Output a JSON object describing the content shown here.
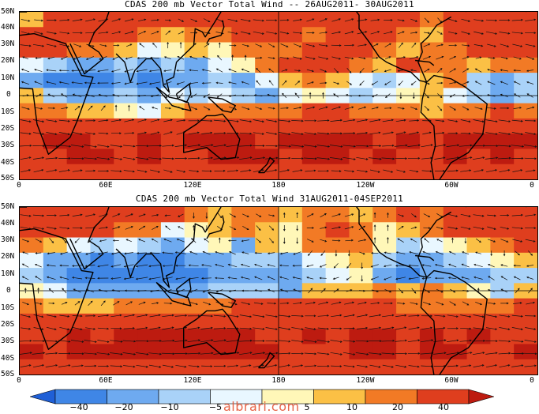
{
  "panels": [
    {
      "title": "CDAS 200 mb Vector Total Wind -- 26AUG2011- 30AUG2011",
      "wind": [
        [
          5,
          35,
          30,
          30,
          30,
          35,
          30,
          30,
          25,
          20,
          25,
          30,
          35,
          30,
          25,
          30,
          20,
          15,
          20,
          30,
          30,
          35
        ],
        [
          20,
          25,
          25,
          25,
          20,
          15,
          5,
          10,
          15,
          25,
          30,
          20,
          15,
          20,
          25,
          20,
          10,
          5,
          20,
          25,
          30,
          30
        ],
        [
          30,
          25,
          15,
          10,
          5,
          -5,
          0,
          5,
          0,
          10,
          10,
          15,
          20,
          25,
          20,
          10,
          5,
          10,
          15,
          20,
          20,
          25
        ],
        [
          -5,
          -10,
          -15,
          -15,
          -10,
          -20,
          -10,
          -15,
          -5,
          0,
          10,
          20,
          25,
          20,
          10,
          5,
          20,
          15,
          10,
          5,
          10,
          15
        ],
        [
          -15,
          -25,
          -30,
          -30,
          -20,
          -30,
          -15,
          -20,
          -10,
          -15,
          -5,
          5,
          10,
          5,
          -5,
          -10,
          -5,
          5,
          10,
          -10,
          -15,
          -10
        ],
        [
          5,
          -10,
          -20,
          -20,
          -10,
          -15,
          -5,
          -10,
          -5,
          -10,
          -15,
          -5,
          0,
          -5,
          -10,
          -5,
          0,
          5,
          -5,
          -10,
          -15,
          -10
        ],
        [
          15,
          10,
          5,
          5,
          0,
          -5,
          5,
          10,
          10,
          15,
          10,
          15,
          20,
          20,
          15,
          10,
          10,
          5,
          10,
          15,
          20,
          15
        ],
        [
          30,
          30,
          25,
          25,
          25,
          20,
          20,
          30,
          35,
          35,
          30,
          35,
          35,
          35,
          30,
          30,
          25,
          20,
          25,
          30,
          35,
          30
        ],
        [
          35,
          40,
          40,
          35,
          35,
          40,
          35,
          40,
          40,
          40,
          35,
          40,
          45,
          40,
          40,
          35,
          40,
          35,
          40,
          45,
          40,
          40
        ],
        [
          30,
          35,
          40,
          40,
          35,
          40,
          35,
          35,
          40,
          40,
          40,
          35,
          40,
          40,
          35,
          40,
          35,
          30,
          40,
          35,
          40,
          35
        ],
        [
          25,
          30,
          25,
          30,
          30,
          25,
          20,
          25,
          30,
          30,
          30,
          25,
          30,
          25,
          30,
          25,
          20,
          25,
          30,
          25,
          30,
          25
        ]
      ]
    },
    {
      "title": "CDAS 200 mb Vector Total Wind 31AUG2011-04SEP2011",
      "wind": [
        [
          25,
          30,
          30,
          30,
          35,
          30,
          25,
          10,
          5,
          10,
          15,
          5,
          10,
          15,
          5,
          10,
          20,
          15,
          30,
          20,
          30,
          25
        ],
        [
          30,
          25,
          25,
          20,
          15,
          10,
          -5,
          0,
          5,
          10,
          5,
          0,
          10,
          20,
          10,
          0,
          5,
          10,
          25,
          30,
          20,
          30
        ],
        [
          10,
          5,
          -5,
          -10,
          -5,
          -10,
          -15,
          -5,
          0,
          -15,
          5,
          0,
          10,
          15,
          15,
          0,
          -10,
          -5,
          0,
          5,
          15,
          25
        ],
        [
          -5,
          -15,
          -20,
          -25,
          -20,
          -25,
          -30,
          -15,
          -20,
          -10,
          -10,
          -15,
          -5,
          0,
          5,
          -10,
          -20,
          -15,
          -10,
          -5,
          0,
          5
        ],
        [
          -10,
          -20,
          -25,
          -30,
          -25,
          -35,
          -25,
          -25,
          -20,
          -20,
          -15,
          -20,
          -10,
          -5,
          0,
          -15,
          -25,
          -20,
          -15,
          -20,
          -10,
          -10
        ],
        [
          0,
          -5,
          -15,
          -20,
          -15,
          -20,
          -15,
          -15,
          -10,
          -10,
          -10,
          -15,
          5,
          5,
          5,
          10,
          5,
          10,
          5,
          0,
          -10,
          5
        ],
        [
          10,
          5,
          5,
          5,
          10,
          10,
          15,
          15,
          15,
          20,
          20,
          20,
          25,
          25,
          20,
          20,
          15,
          15,
          10,
          10,
          15,
          20
        ],
        [
          25,
          25,
          25,
          30,
          30,
          30,
          35,
          35,
          35,
          35,
          35,
          35,
          30,
          30,
          30,
          35,
          30,
          30,
          30,
          30,
          30,
          30
        ],
        [
          35,
          35,
          40,
          35,
          40,
          40,
          40,
          40,
          40,
          40,
          35,
          35,
          40,
          35,
          40,
          40,
          35,
          40,
          35,
          40,
          35,
          35
        ],
        [
          40,
          35,
          40,
          40,
          45,
          40,
          40,
          45,
          40,
          40,
          40,
          35,
          35,
          35,
          40,
          40,
          35,
          40,
          40,
          35,
          35,
          40
        ],
        [
          30,
          35,
          35,
          30,
          35,
          35,
          30,
          30,
          35,
          30,
          30,
          30,
          35,
          30,
          30,
          30,
          30,
          35,
          30,
          30,
          30,
          35
        ]
      ]
    }
  ],
  "lat_labels": [
    "50N",
    "40N",
    "30N",
    "20N",
    "10N",
    "0",
    "10S",
    "20S",
    "30S",
    "40S",
    "50S"
  ],
  "lon_labels": [
    "0",
    "60E",
    "120E",
    "180",
    "120W",
    "60W",
    "0"
  ],
  "colorbar": {
    "levels": [
      -40,
      -20,
      -10,
      -5,
      0,
      5,
      10,
      20,
      40
    ],
    "labels": [
      "−40",
      "−20",
      "−10",
      "−5",
      "",
      "5",
      "10",
      "20",
      "40"
    ],
    "colors": [
      "#1f5fd6",
      "#3f86e6",
      "#6eaaf0",
      "#a9d2f8",
      "#e9f7ff",
      "#fff7b8",
      "#fbc045",
      "#f27a25",
      "#df3e1e",
      "#bd1b10"
    ]
  },
  "watermark": "albrari.com"
}
